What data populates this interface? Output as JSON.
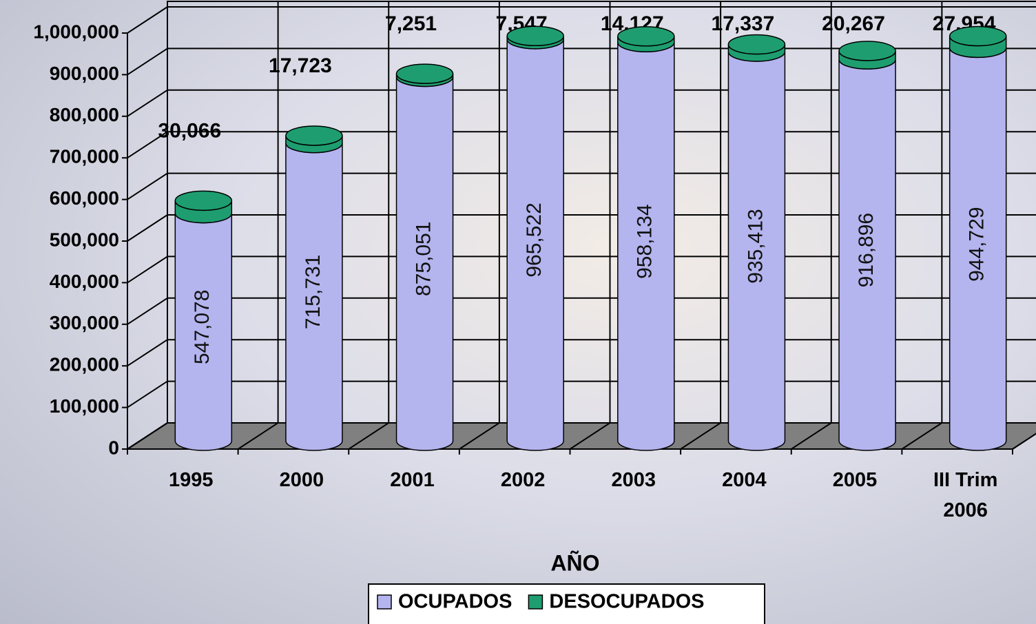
{
  "chart_data": {
    "type": "bar3d_stacked",
    "x_label": "AÑO",
    "categories": [
      "1995",
      "2000",
      "2001",
      "2002",
      "2003",
      "2004",
      "2005",
      "III Trim 2006"
    ],
    "series": [
      {
        "name": "OCUPADOS",
        "color": "#b4b4ee",
        "values": [
          547078,
          715731,
          875051,
          965522,
          958134,
          935413,
          916896,
          944729
        ],
        "value_labels": [
          "547,078",
          "715,731",
          "875,051",
          "965,522",
          "958,134",
          "935,413",
          "916,896",
          "944,729"
        ]
      },
      {
        "name": "DESOCUPADOS",
        "color": "#1e9e70",
        "values": [
          30066,
          17723,
          7251,
          7547,
          14127,
          17337,
          20267,
          27954
        ],
        "value_labels": [
          "30,066",
          "17,723",
          "7,251",
          "7,547",
          "14,127",
          "17,337",
          "20,267",
          "27,954"
        ]
      }
    ],
    "ylim": [
      0,
      1000000
    ],
    "yticks": [
      0,
      {
        "value": 100000,
        "label": "100,000"
      },
      {
        "value": 200000,
        "label": "200,000"
      },
      {
        "value": 300000,
        "label": "300,000"
      },
      {
        "value": 400000,
        "label": "400,000"
      },
      {
        "value": 500000,
        "label": "500,000"
      },
      {
        "value": 600000,
        "label": "600,000"
      },
      {
        "value": 700000,
        "label": "700,000"
      },
      {
        "value": 800000,
        "label": "800,000"
      },
      {
        "value": 900000,
        "label": "900,000"
      },
      {
        "value": 1000000,
        "label": "1,000,000"
      }
    ],
    "grid": true
  }
}
